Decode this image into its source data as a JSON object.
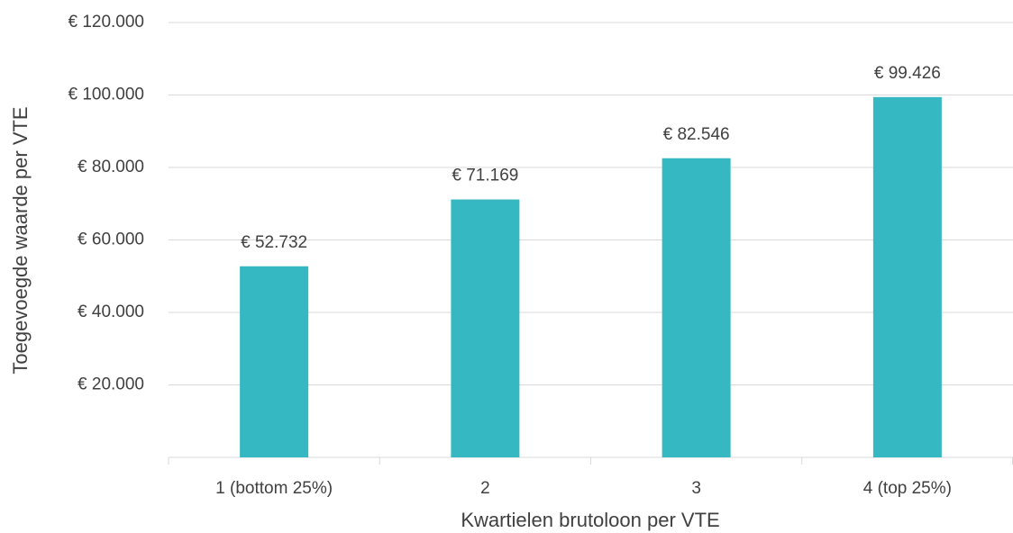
{
  "chart_data": {
    "type": "bar",
    "categories": [
      "1 (bottom 25%)",
      "2",
      "3",
      "4 (top 25%)"
    ],
    "values": [
      52732,
      71169,
      82546,
      99426
    ],
    "value_labels": [
      "€ 52.732",
      "€ 71.169",
      "€ 82.546",
      "€ 99.426"
    ],
    "color": "#36b8c2",
    "x_label": "Kwartielen brutoloon per VTE",
    "y_label": "Toegevoegde waarde per VTE",
    "ylim": [
      0,
      120000
    ],
    "yticks": [
      {
        "value": 20000,
        "label": "€ 20.000"
      },
      {
        "value": 40000,
        "label": "€ 40.000"
      },
      {
        "value": 60000,
        "label": "€ 60.000"
      },
      {
        "value": 80000,
        "label": "€ 80.000"
      },
      {
        "value": 100000,
        "label": "€ 100.000"
      },
      {
        "value": 120000,
        "label": "€ 120.000"
      }
    ],
    "grid": true
  }
}
